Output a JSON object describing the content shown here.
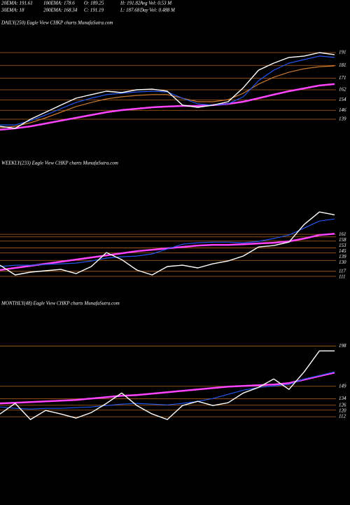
{
  "header": {
    "rows": [
      [
        "20EMA: 191.61",
        "100EMA: 178.6",
        "O: 189.25",
        "H: 191.82",
        "Avg Vol: 0.53 M"
      ],
      [
        "30EMA: 18",
        "200EMA: 168.34",
        "C: 191.19",
        "L: 187.68",
        "Day Vol: 0.488 M"
      ]
    ]
  },
  "chart_data": [
    {
      "type": "line",
      "title": "DAILY(250) Eagle   View  CHKP charts MunafaSutra.com",
      "ylim": [
        122.6,
        215.6
      ],
      "yticks": [
        191,
        181,
        171,
        162,
        154,
        146,
        139
      ],
      "grid_color": "#b8651b",
      "series": [
        {
          "color": "#ff44ff",
          "values": [
            130.8,
            131.9,
            133.5,
            135.7,
            137.9,
            140.1,
            142.3,
            144.5,
            146.1,
            147.2,
            148.3,
            148.9,
            149.4,
            149.4,
            150,
            151,
            152.7,
            155.4,
            158.2,
            160.9,
            163.1,
            165.3,
            166.4
          ]
        },
        {
          "color": "#c87830",
          "values": [
            132.4,
            133.5,
            136.3,
            140.1,
            144.5,
            148.9,
            152.1,
            154.9,
            156.5,
            157.6,
            158.2,
            158.2,
            155.4,
            152.7,
            152.7,
            154.3,
            159.3,
            166.4,
            171.8,
            175.7,
            178.4,
            180,
            180.6
          ]
        },
        {
          "color": "#2255ee",
          "values": [
            134.6,
            134.6,
            137.9,
            142.3,
            147.2,
            152.1,
            155.4,
            158.2,
            159.3,
            160.3,
            160.9,
            160.3,
            155.4,
            151,
            150,
            151,
            156.5,
            169.1,
            177.3,
            182.8,
            185.5,
            188.3,
            187.2
          ]
        },
        {
          "color": "#ffffff",
          "values": [
            133.5,
            131.9,
            139,
            144.5,
            150,
            155.4,
            158.2,
            160.9,
            159.8,
            162,
            162.5,
            160.9,
            150,
            148.3,
            150,
            152.7,
            163.6,
            177.3,
            182.8,
            187.2,
            188.3,
            191,
            189.4
          ]
        }
      ]
    },
    {
      "type": "line",
      "title": "WEEKLY(233) Eagle   View  CHKP charts MunafaSutra.com",
      "ylim": [
        106,
        248
      ],
      "yticks": [
        161,
        158,
        153,
        145,
        139,
        130,
        117,
        111
      ],
      "grid_color": "#b8651b",
      "series": [
        {
          "color": "#ff44ff",
          "values": [
            118.5,
            121,
            123.5,
            126,
            128.5,
            131,
            133.5,
            136,
            138.5,
            141,
            142.7,
            144.3,
            146,
            147.7,
            148.5,
            148.5,
            149.3,
            150.2,
            151,
            152.7,
            156,
            160.2,
            161.7
          ]
        },
        {
          "color": "#2255ee",
          "values": [
            122.7,
            124.3,
            124.3,
            125.2,
            126,
            126.8,
            129.3,
            132.7,
            134.3,
            135.2,
            137.7,
            143.5,
            149.3,
            151,
            151.8,
            151.8,
            151,
            152.7,
            156,
            160.2,
            168.5,
            176.8,
            179.3
          ]
        },
        {
          "color": "#ffffff",
          "values": [
            124.3,
            112.7,
            116,
            117.7,
            119.3,
            114.3,
            122.7,
            139.3,
            131,
            118.5,
            112.7,
            122.7,
            124.3,
            121,
            126,
            129.3,
            135.2,
            146,
            147.7,
            151.8,
            172.7,
            187.7,
            184.3
          ]
        }
      ]
    },
    {
      "type": "line",
      "title": "MONTHLY(48) Eagle   View  CHKP charts MunafaSutra.com",
      "ylim": [
        107,
        252
      ],
      "yticks": [
        198,
        149,
        134,
        126,
        120,
        112
      ],
      "grid_color": "#b8651b",
      "series": [
        {
          "color": "#ff44ff",
          "values": [
            128.2,
            129,
            129.9,
            130.7,
            131.6,
            132.4,
            134.1,
            135.8,
            137.5,
            138.4,
            140.1,
            141.8,
            143.5,
            145.2,
            146.9,
            148.6,
            149.4,
            150.3,
            151.2,
            152.9,
            157.1,
            161.4,
            165.6
          ]
        },
        {
          "color": "#2255ee",
          "values": [
            123.9,
            122.2,
            121.3,
            122.2,
            122.2,
            123,
            123.9,
            125.6,
            127.3,
            128.2,
            127.3,
            126.4,
            128.2,
            130.7,
            134.1,
            139.2,
            144.3,
            147.7,
            149.4,
            151.2,
            157.9,
            162.2,
            166.5
          ]
        },
        {
          "color": "#ffffff",
          "values": [
            115.4,
            128.2,
            108.6,
            119.6,
            115.4,
            110.3,
            117.1,
            128.2,
            140.9,
            125.6,
            115.4,
            108.6,
            125.6,
            130.7,
            125.6,
            129,
            140.9,
            147.7,
            157.9,
            145.2,
            166.5,
            192,
            192
          ]
        }
      ]
    }
  ]
}
